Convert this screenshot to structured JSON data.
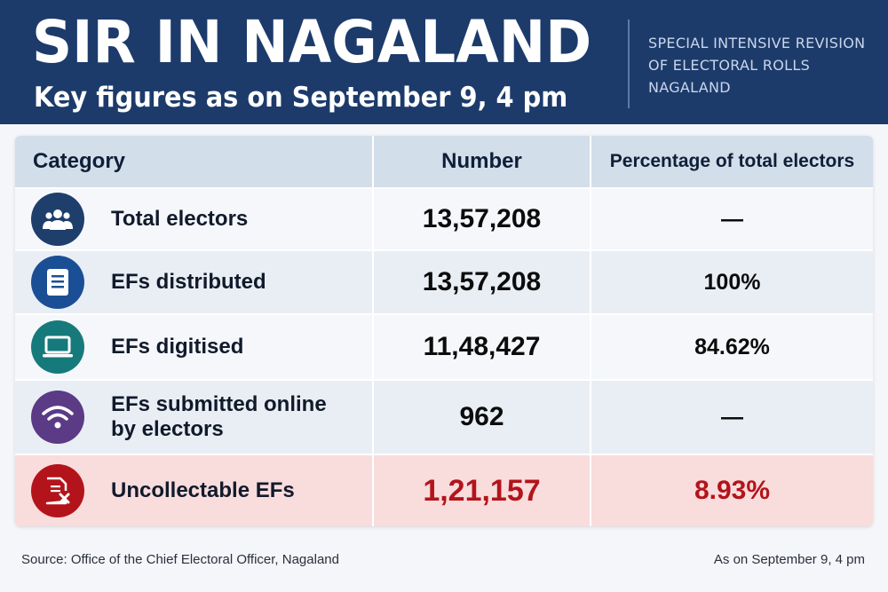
{
  "header": {
    "title": "SIR IN NAGALAND",
    "subtitle": "Key figures as on September 9, 4 pm",
    "tagline": [
      "SPECIAL INTENSIVE REVISION",
      "OF ELECTORAL ROLLS",
      "NAGALAND"
    ]
  },
  "table": {
    "columns": [
      "Category",
      "Number",
      "Percentage of total electors"
    ],
    "rows": [
      {
        "icon": "people-icon",
        "icon_color": "#1e3e6b",
        "category": "Total electors",
        "number": "13,57,208",
        "percentage": "—"
      },
      {
        "icon": "document-icon",
        "icon_color": "#1b4f95",
        "category": "EFs distributed",
        "number": "13,57,208",
        "percentage": "100%"
      },
      {
        "icon": "laptop-icon",
        "icon_color": "#167a7c",
        "category": "EFs digitised",
        "number": "11,48,427",
        "percentage": "84.62%"
      },
      {
        "icon": "wifi-icon",
        "icon_color": "#5b3a86",
        "category": "EFs submitted online by electors",
        "number": "962",
        "percentage": "—"
      },
      {
        "icon": "document-cross-icon",
        "icon_color": "#b3141b",
        "category": "Uncollectable EFs",
        "number": "1,21,157",
        "percentage": "8.93%"
      }
    ]
  },
  "footer": {
    "source": "Source: Office of the Chief Electoral Officer, Nagaland",
    "as_on": "As on September 9, 4 pm"
  },
  "colors": {
    "header_bg": "#1c3b6b",
    "table_header_bg": "#d3deeb",
    "alert_row_bg": "#f9dcdc",
    "alert_text": "#b3141b"
  }
}
